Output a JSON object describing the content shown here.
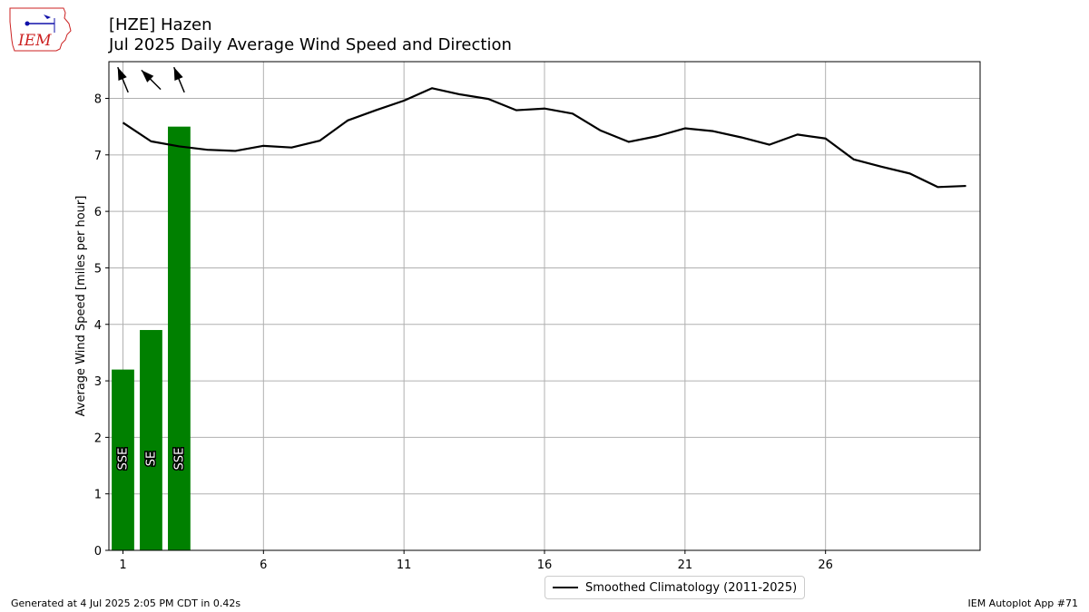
{
  "header": {
    "station": "[HZE] Hazen",
    "subtitle": "Jul 2025 Daily Average Wind Speed and Direction",
    "logo_text": "IEM"
  },
  "footer": {
    "generated": "Generated at 4 Jul 2025 2:05 PM CDT in 0.42s",
    "app": "IEM Autoplot App #71"
  },
  "colors": {
    "bar": "#008000",
    "climatology": "#000000",
    "grid": "#b0b0b0",
    "logo_red": "#cc2222",
    "logo_blue": "#1111aa"
  },
  "chart_data": {
    "type": "bar",
    "xlim": [
      0.5,
      31.5
    ],
    "ylim": [
      0,
      8.65
    ],
    "ylabel": "Average Wind Speed [miles per hour]",
    "xticks": [
      1,
      6,
      11,
      16,
      21,
      26
    ],
    "yticks": [
      0,
      1,
      2,
      3,
      4,
      5,
      6,
      7,
      8
    ],
    "grid": true,
    "legend_position": "bottom-center",
    "bars": [
      {
        "day": 1,
        "value": 3.2,
        "direction": "SSE",
        "dir_deg": 157.5
      },
      {
        "day": 2,
        "value": 3.9,
        "direction": "SE",
        "dir_deg": 135
      },
      {
        "day": 3,
        "value": 7.5,
        "direction": "SSE",
        "dir_deg": 157.5
      }
    ],
    "series": [
      {
        "name": "Smoothed Climatology (2011-2025)",
        "x": [
          1,
          2,
          3,
          4,
          5,
          6,
          7,
          8,
          9,
          10,
          11,
          12,
          13,
          14,
          15,
          16,
          17,
          18,
          19,
          20,
          21,
          22,
          23,
          24,
          25,
          26,
          27,
          28,
          29,
          30,
          31
        ],
        "values": [
          7.57,
          7.24,
          7.15,
          7.09,
          7.07,
          7.16,
          7.13,
          7.25,
          7.61,
          7.79,
          7.96,
          8.18,
          8.07,
          7.99,
          7.79,
          7.82,
          7.73,
          7.43,
          7.23,
          7.33,
          7.47,
          7.42,
          7.31,
          7.18,
          7.36,
          7.29,
          6.92,
          6.79,
          6.67,
          6.43,
          6.45
        ]
      }
    ]
  }
}
